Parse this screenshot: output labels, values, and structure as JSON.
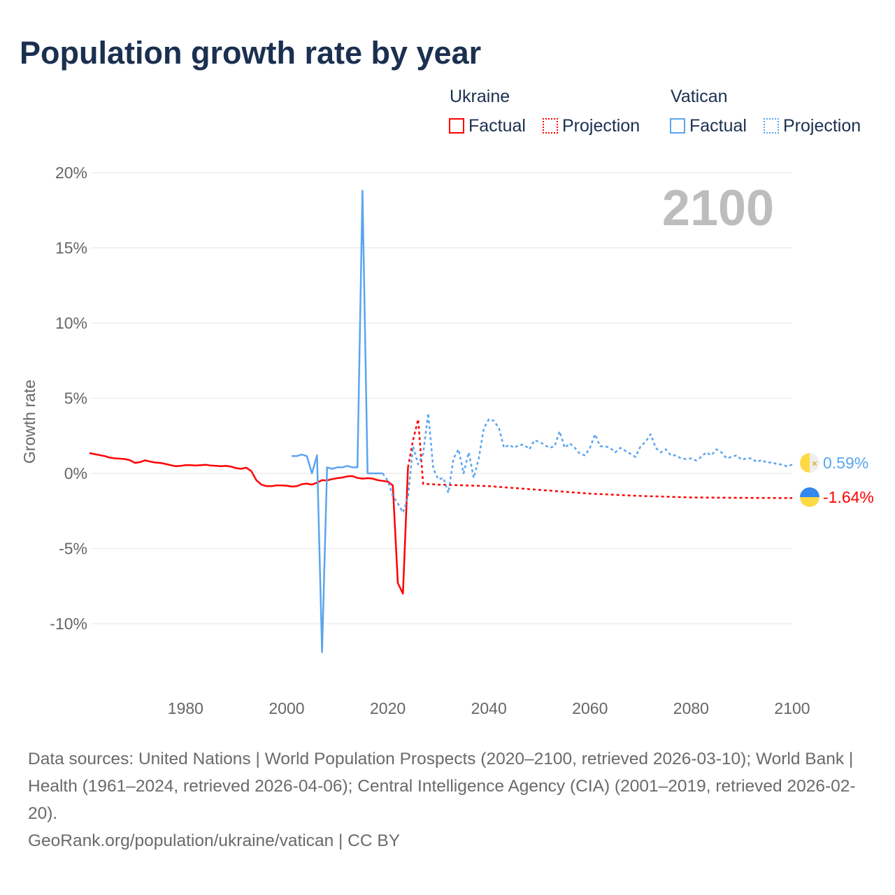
{
  "title": "Population growth rate by year",
  "legend": {
    "groups": [
      {
        "name": "Ukraine",
        "color": "#ff0000",
        "factual": "Factual",
        "projection": "Projection"
      },
      {
        "name": "Vatican",
        "color": "#5aa5ef",
        "factual": "Factual",
        "projection": "Projection"
      }
    ]
  },
  "year_label": "2100",
  "end_labels": {
    "vatican": "0.59%",
    "ukraine": "-1.64%"
  },
  "footer": {
    "sources": "Data sources: United Nations | World Population Prospects (2020–2100, retrieved 2026-03-10); World Bank | Health (1961–2024, retrieved 2026-04-06); Central Intelligence Agency (CIA) (2001–2019, retrieved 2026-02-20).",
    "link": "GeoRank.org/population/ukraine/vatican | CC BY"
  },
  "chart_data": {
    "type": "line",
    "title": "Population growth rate by year",
    "ylabel": "Growth rate",
    "xlabel": "",
    "xlim": [
      1961,
      2100
    ],
    "ylim": [
      -13.5,
      21.5
    ],
    "xticks": [
      1980,
      2000,
      2020,
      2040,
      2060,
      2080,
      2100
    ],
    "xtick_labels": [
      "1980",
      "2000",
      "2020",
      "2040",
      "2060",
      "2080",
      "2100"
    ],
    "yticks": [
      20,
      15,
      10,
      5,
      0,
      -5,
      -10
    ],
    "ytick_labels": [
      "20%",
      "15%",
      "10%",
      "5%",
      "0%",
      "-5%",
      "-10%"
    ],
    "grid": true,
    "legend_position": "top-right",
    "series": [
      {
        "name": "Ukraine Factual",
        "color": "#ff0000",
        "dashed": false,
        "x": [
          1961,
          1962,
          1963,
          1964,
          1965,
          1966,
          1967,
          1968,
          1969,
          1970,
          1971,
          1972,
          1973,
          1974,
          1975,
          1976,
          1977,
          1978,
          1979,
          1980,
          1981,
          1982,
          1983,
          1984,
          1985,
          1986,
          1987,
          1988,
          1989,
          1990,
          1991,
          1992,
          1993,
          1994,
          1995,
          1996,
          1997,
          1998,
          1999,
          2000,
          2001,
          2002,
          2003,
          2004,
          2005,
          2006,
          2007,
          2008,
          2009,
          2010,
          2011,
          2012,
          2013,
          2014,
          2015,
          2016,
          2017,
          2018,
          2019,
          2020,
          2021,
          2022,
          2023,
          2024
        ],
        "y": [
          1.35,
          1.28,
          1.22,
          1.15,
          1.05,
          1.0,
          0.98,
          0.95,
          0.88,
          0.7,
          0.75,
          0.87,
          0.78,
          0.72,
          0.7,
          0.63,
          0.55,
          0.48,
          0.5,
          0.55,
          0.55,
          0.52,
          0.55,
          0.57,
          0.52,
          0.5,
          0.48,
          0.5,
          0.45,
          0.35,
          0.3,
          0.38,
          0.15,
          -0.45,
          -0.75,
          -0.85,
          -0.85,
          -0.8,
          -0.8,
          -0.82,
          -0.88,
          -0.85,
          -0.72,
          -0.68,
          -0.75,
          -0.62,
          -0.45,
          -0.47,
          -0.38,
          -0.32,
          -0.28,
          -0.2,
          -0.18,
          -0.3,
          -0.35,
          -0.32,
          -0.35,
          -0.45,
          -0.5,
          -0.55,
          -0.8,
          -7.3,
          -8.0,
          0.4
        ]
      },
      {
        "name": "Ukraine Projection",
        "color": "#ff0000",
        "dashed": true,
        "x": [
          2024,
          2025,
          2026,
          2027,
          2030,
          2040,
          2050,
          2060,
          2070,
          2080,
          2090,
          2100
        ],
        "y": [
          0.4,
          2.2,
          3.6,
          -0.7,
          -0.75,
          -0.85,
          -1.1,
          -1.35,
          -1.5,
          -1.6,
          -1.63,
          -1.64
        ]
      },
      {
        "name": "Vatican Factual",
        "color": "#5aa5ef",
        "dashed": false,
        "x": [
          2001,
          2002,
          2003,
          2004,
          2005,
          2006,
          2007,
          2008,
          2009,
          2010,
          2011,
          2012,
          2013,
          2014,
          2015,
          2016,
          2017,
          2018,
          2019
        ],
        "y": [
          1.15,
          1.15,
          1.25,
          1.15,
          0.0,
          1.2,
          -11.9,
          0.4,
          0.3,
          0.4,
          0.4,
          0.5,
          0.4,
          0.4,
          18.8,
          0.0,
          0.0,
          0.0,
          0.0
        ]
      },
      {
        "name": "Vatican Projection",
        "color": "#5aa5ef",
        "dashed": true,
        "x": [
          2019,
          2020,
          2021,
          2022,
          2023,
          2024,
          2025,
          2026,
          2027,
          2028,
          2029,
          2030,
          2031,
          2032,
          2033,
          2034,
          2035,
          2036,
          2037,
          2038,
          2039,
          2040,
          2041,
          2042,
          2043,
          2044,
          2045,
          2046,
          2047,
          2048,
          2049,
          2050,
          2051,
          2052,
          2053,
          2054,
          2055,
          2056,
          2057,
          2058,
          2059,
          2060,
          2061,
          2062,
          2063,
          2064,
          2065,
          2066,
          2067,
          2068,
          2069,
          2070,
          2071,
          2072,
          2073,
          2074,
          2075,
          2076,
          2077,
          2078,
          2079,
          2080,
          2081,
          2082,
          2083,
          2084,
          2085,
          2086,
          2087,
          2088,
          2089,
          2090,
          2091,
          2092,
          2093,
          2094,
          2095,
          2096,
          2097,
          2098,
          2099,
          2100
        ],
        "y": [
          0.0,
          -0.5,
          -1.5,
          -2.0,
          -2.6,
          -1.6,
          1.8,
          0.6,
          1.3,
          4.0,
          0.3,
          -0.4,
          -0.3,
          -1.3,
          1.0,
          1.6,
          0.0,
          1.4,
          -0.3,
          1.0,
          3.0,
          3.6,
          3.5,
          3.0,
          1.7,
          1.9,
          1.7,
          1.9,
          1.9,
          1.6,
          2.2,
          2.1,
          1.9,
          1.7,
          1.8,
          2.8,
          1.7,
          2.0,
          1.7,
          1.3,
          1.2,
          1.7,
          2.6,
          1.8,
          1.8,
          1.7,
          1.4,
          1.7,
          1.5,
          1.3,
          1.1,
          1.8,
          2.1,
          2.6,
          1.7,
          1.4,
          1.6,
          1.2,
          1.2,
          1.0,
          0.95,
          1.0,
          0.85,
          1.1,
          1.4,
          1.2,
          1.6,
          1.4,
          1.0,
          1.1,
          1.2,
          0.9,
          1.0,
          1.0,
          0.75,
          0.9,
          0.7,
          0.75,
          0.6,
          0.6,
          0.45,
          0.59
        ]
      }
    ]
  }
}
